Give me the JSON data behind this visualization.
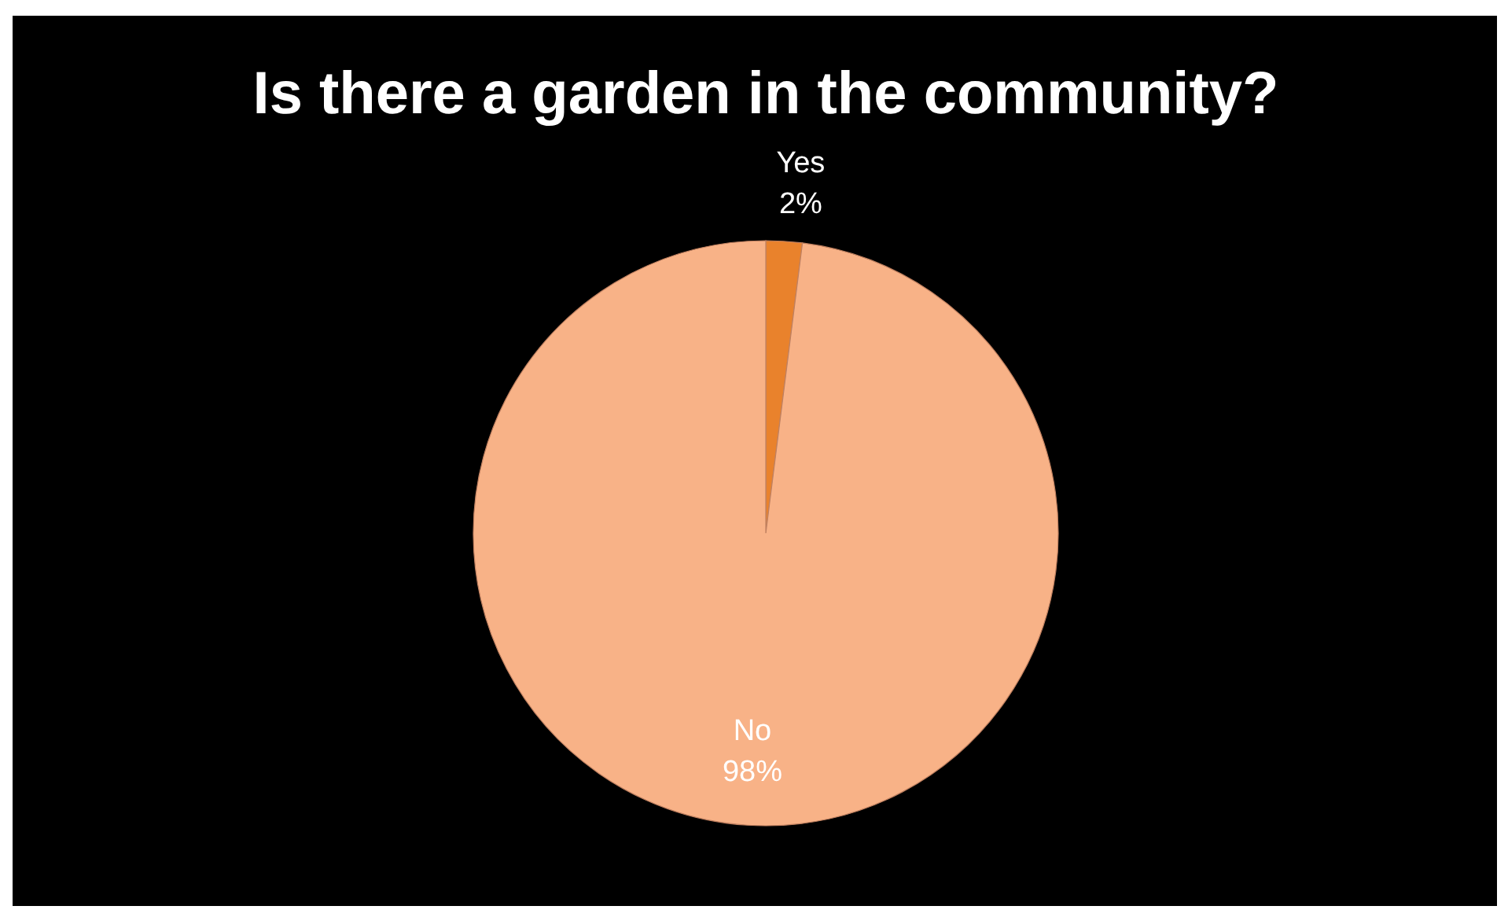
{
  "chart_data": {
    "type": "pie",
    "title": "Is there a garden in the community?",
    "categories": [
      "Yes",
      "No"
    ],
    "values": [
      2,
      98
    ],
    "value_labels": [
      "2%",
      "98%"
    ],
    "colors": [
      "#e9822c",
      "#f8b287"
    ],
    "legend": false
  }
}
